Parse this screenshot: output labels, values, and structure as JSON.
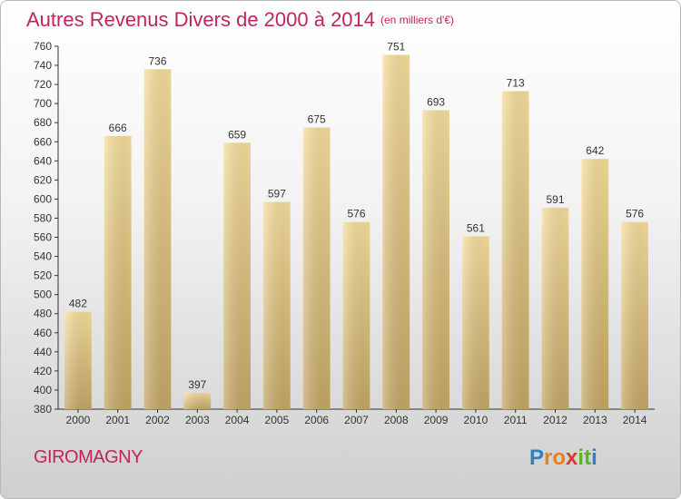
{
  "title": "Autres Revenus Divers de 2000 à 2014",
  "unit": "(en milliers d'€)",
  "commune": "GIROMAGNY",
  "logo": {
    "chars": [
      "P",
      "r",
      "o",
      "x",
      "i",
      "t",
      "i"
    ],
    "colors": [
      "#2e7fc9",
      "#e8801e",
      "#e8801e",
      "#d93a2f",
      "#5fae2e",
      "#5fae2e",
      "#2e7fc9"
    ]
  },
  "chart_data": {
    "type": "bar",
    "categories": [
      "2000",
      "2001",
      "2002",
      "2003",
      "2004",
      "2005",
      "2006",
      "2007",
      "2008",
      "2009",
      "2010",
      "2011",
      "2012",
      "2013",
      "2014"
    ],
    "values": [
      482,
      666,
      736,
      397,
      659,
      597,
      675,
      576,
      751,
      693,
      561,
      713,
      591,
      642,
      576
    ],
    "title": "Autres Revenus Divers de 2000 à 2014",
    "xlabel": "",
    "ylabel": "",
    "ylim": [
      380,
      760
    ],
    "ytick_step": 20,
    "grid": false,
    "bar_color": "#e6c77e"
  }
}
